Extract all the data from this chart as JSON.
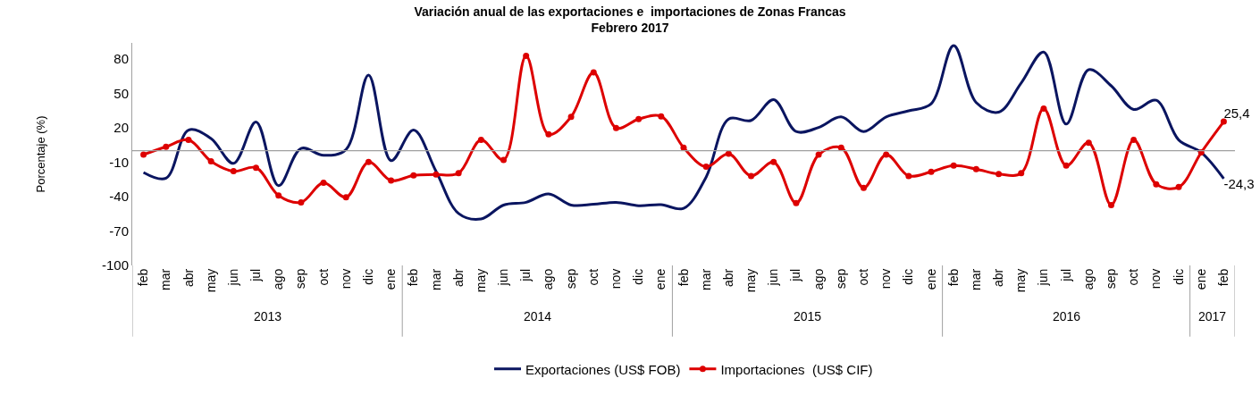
{
  "chart_data": {
    "type": "line",
    "title": "Variación anual de las exportaciones e  importaciones de Zonas Francas",
    "subtitle": "Febrero 2017",
    "ylabel": "Porcentaje (%)",
    "categories": [
      "feb",
      "mar",
      "abr",
      "may",
      "jun",
      "jul",
      "ago",
      "sep",
      "oct",
      "nov",
      "dic",
      "ene",
      "feb",
      "mar",
      "abr",
      "may",
      "jun",
      "jul",
      "ago",
      "sep",
      "oct",
      "nov",
      "dic",
      "ene",
      "feb",
      "mar",
      "abr",
      "may",
      "jun",
      "jul",
      "ago",
      "sep",
      "oct",
      "nov",
      "dic",
      "ene",
      "feb",
      "mar",
      "abr",
      "may",
      "jun",
      "jul",
      "ago",
      "sep",
      "oct",
      "nov",
      "dic",
      "ene",
      "feb"
    ],
    "series": [
      {
        "name": "Exportaciones (US$ FOB)",
        "color": "#0a1560",
        "marker": "none",
        "values": [
          -19,
          -24,
          18,
          10.6,
          -11,
          25,
          -30.5,
          2,
          -4,
          1,
          66,
          -8.7,
          18,
          -18,
          -54.7,
          -59.5,
          -47.4,
          -45,
          -37.7,
          -47.4,
          -46.7,
          -45,
          -47.9,
          -47,
          -50.3,
          -23,
          27.6,
          26.4,
          44.5,
          16.7,
          20.3,
          29.5,
          16.7,
          29.5,
          34.8,
          40.9,
          91.7,
          42,
          33.6,
          59,
          86,
          23.2,
          70.6,
          56.6,
          36,
          44,
          9.4,
          -1.5,
          -24.3
        ],
        "value_labels": [
          null,
          null,
          null,
          null,
          null,
          null,
          null,
          null,
          null,
          null,
          null,
          null,
          null,
          null,
          null,
          null,
          null,
          null,
          null,
          null,
          null,
          null,
          null,
          null,
          null,
          null,
          null,
          null,
          null,
          null,
          null,
          null,
          null,
          null,
          null,
          null,
          null,
          null,
          null,
          null,
          null,
          null,
          null,
          null,
          null,
          null,
          null,
          null,
          "-24,3"
        ]
      },
      {
        "name": "Importaciones  (US$ CIF)",
        "color": "#dd0000",
        "marker": "circle",
        "values": [
          -3.4,
          3.4,
          9.4,
          -9.2,
          -17.9,
          -14.8,
          -39,
          -45,
          -28,
          -40.6,
          -9.9,
          -26,
          -21.5,
          -20.8,
          -19.6,
          9.4,
          -8,
          82.7,
          14.3,
          29.5,
          68.2,
          19.8,
          27.6,
          30,
          2.7,
          -14,
          -2.7,
          -22,
          -9.9,
          -45.7,
          -3.4,
          2.7,
          -32.4,
          -3.4,
          -22,
          -18.4,
          -13,
          -16,
          -20.3,
          -19.6,
          36.8,
          -13,
          7,
          -47.4,
          9.4,
          -29.2,
          -31.7,
          -1.5,
          25.4
        ],
        "value_labels": [
          null,
          null,
          null,
          null,
          null,
          null,
          null,
          null,
          null,
          null,
          null,
          null,
          null,
          null,
          null,
          null,
          null,
          null,
          null,
          null,
          null,
          null,
          null,
          null,
          null,
          null,
          null,
          null,
          null,
          null,
          null,
          null,
          null,
          null,
          null,
          null,
          null,
          null,
          null,
          null,
          null,
          null,
          null,
          null,
          null,
          null,
          null,
          null,
          "25,4"
        ]
      }
    ],
    "ylim": [
      -100,
      94
    ],
    "yticks": [
      -100,
      -70,
      -40,
      -10,
      20,
      50,
      80
    ],
    "ref_lines": [
      {
        "axis": "y",
        "value": 0,
        "color": "#a0a0a0"
      }
    ],
    "annotations": [
      "2013",
      "2014",
      "2015",
      "2016",
      "2017"
    ],
    "legend": "bottom"
  }
}
